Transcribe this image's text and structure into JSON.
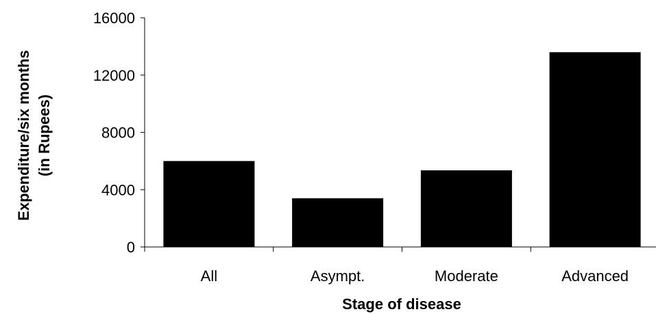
{
  "chart_data": {
    "type": "bar",
    "categories": [
      "All",
      "Asympt.",
      "Moderate",
      "Advanced"
    ],
    "values": [
      6000,
      3400,
      5350,
      13600
    ],
    "xlabel": "Stage of disease",
    "ylabel_lines": [
      "Expenditure/six months",
      "(in  Rupees)"
    ],
    "ylim": [
      0,
      16000
    ],
    "yticks": [
      0,
      4000,
      8000,
      12000,
      16000
    ],
    "ytick_labels": [
      "0",
      "4000",
      "8000",
      "12000",
      "16000"
    ],
    "grid": false,
    "legend": "none",
    "colors": {
      "bar": "#000000",
      "axis": "#000000",
      "background": "#ffffff"
    }
  }
}
